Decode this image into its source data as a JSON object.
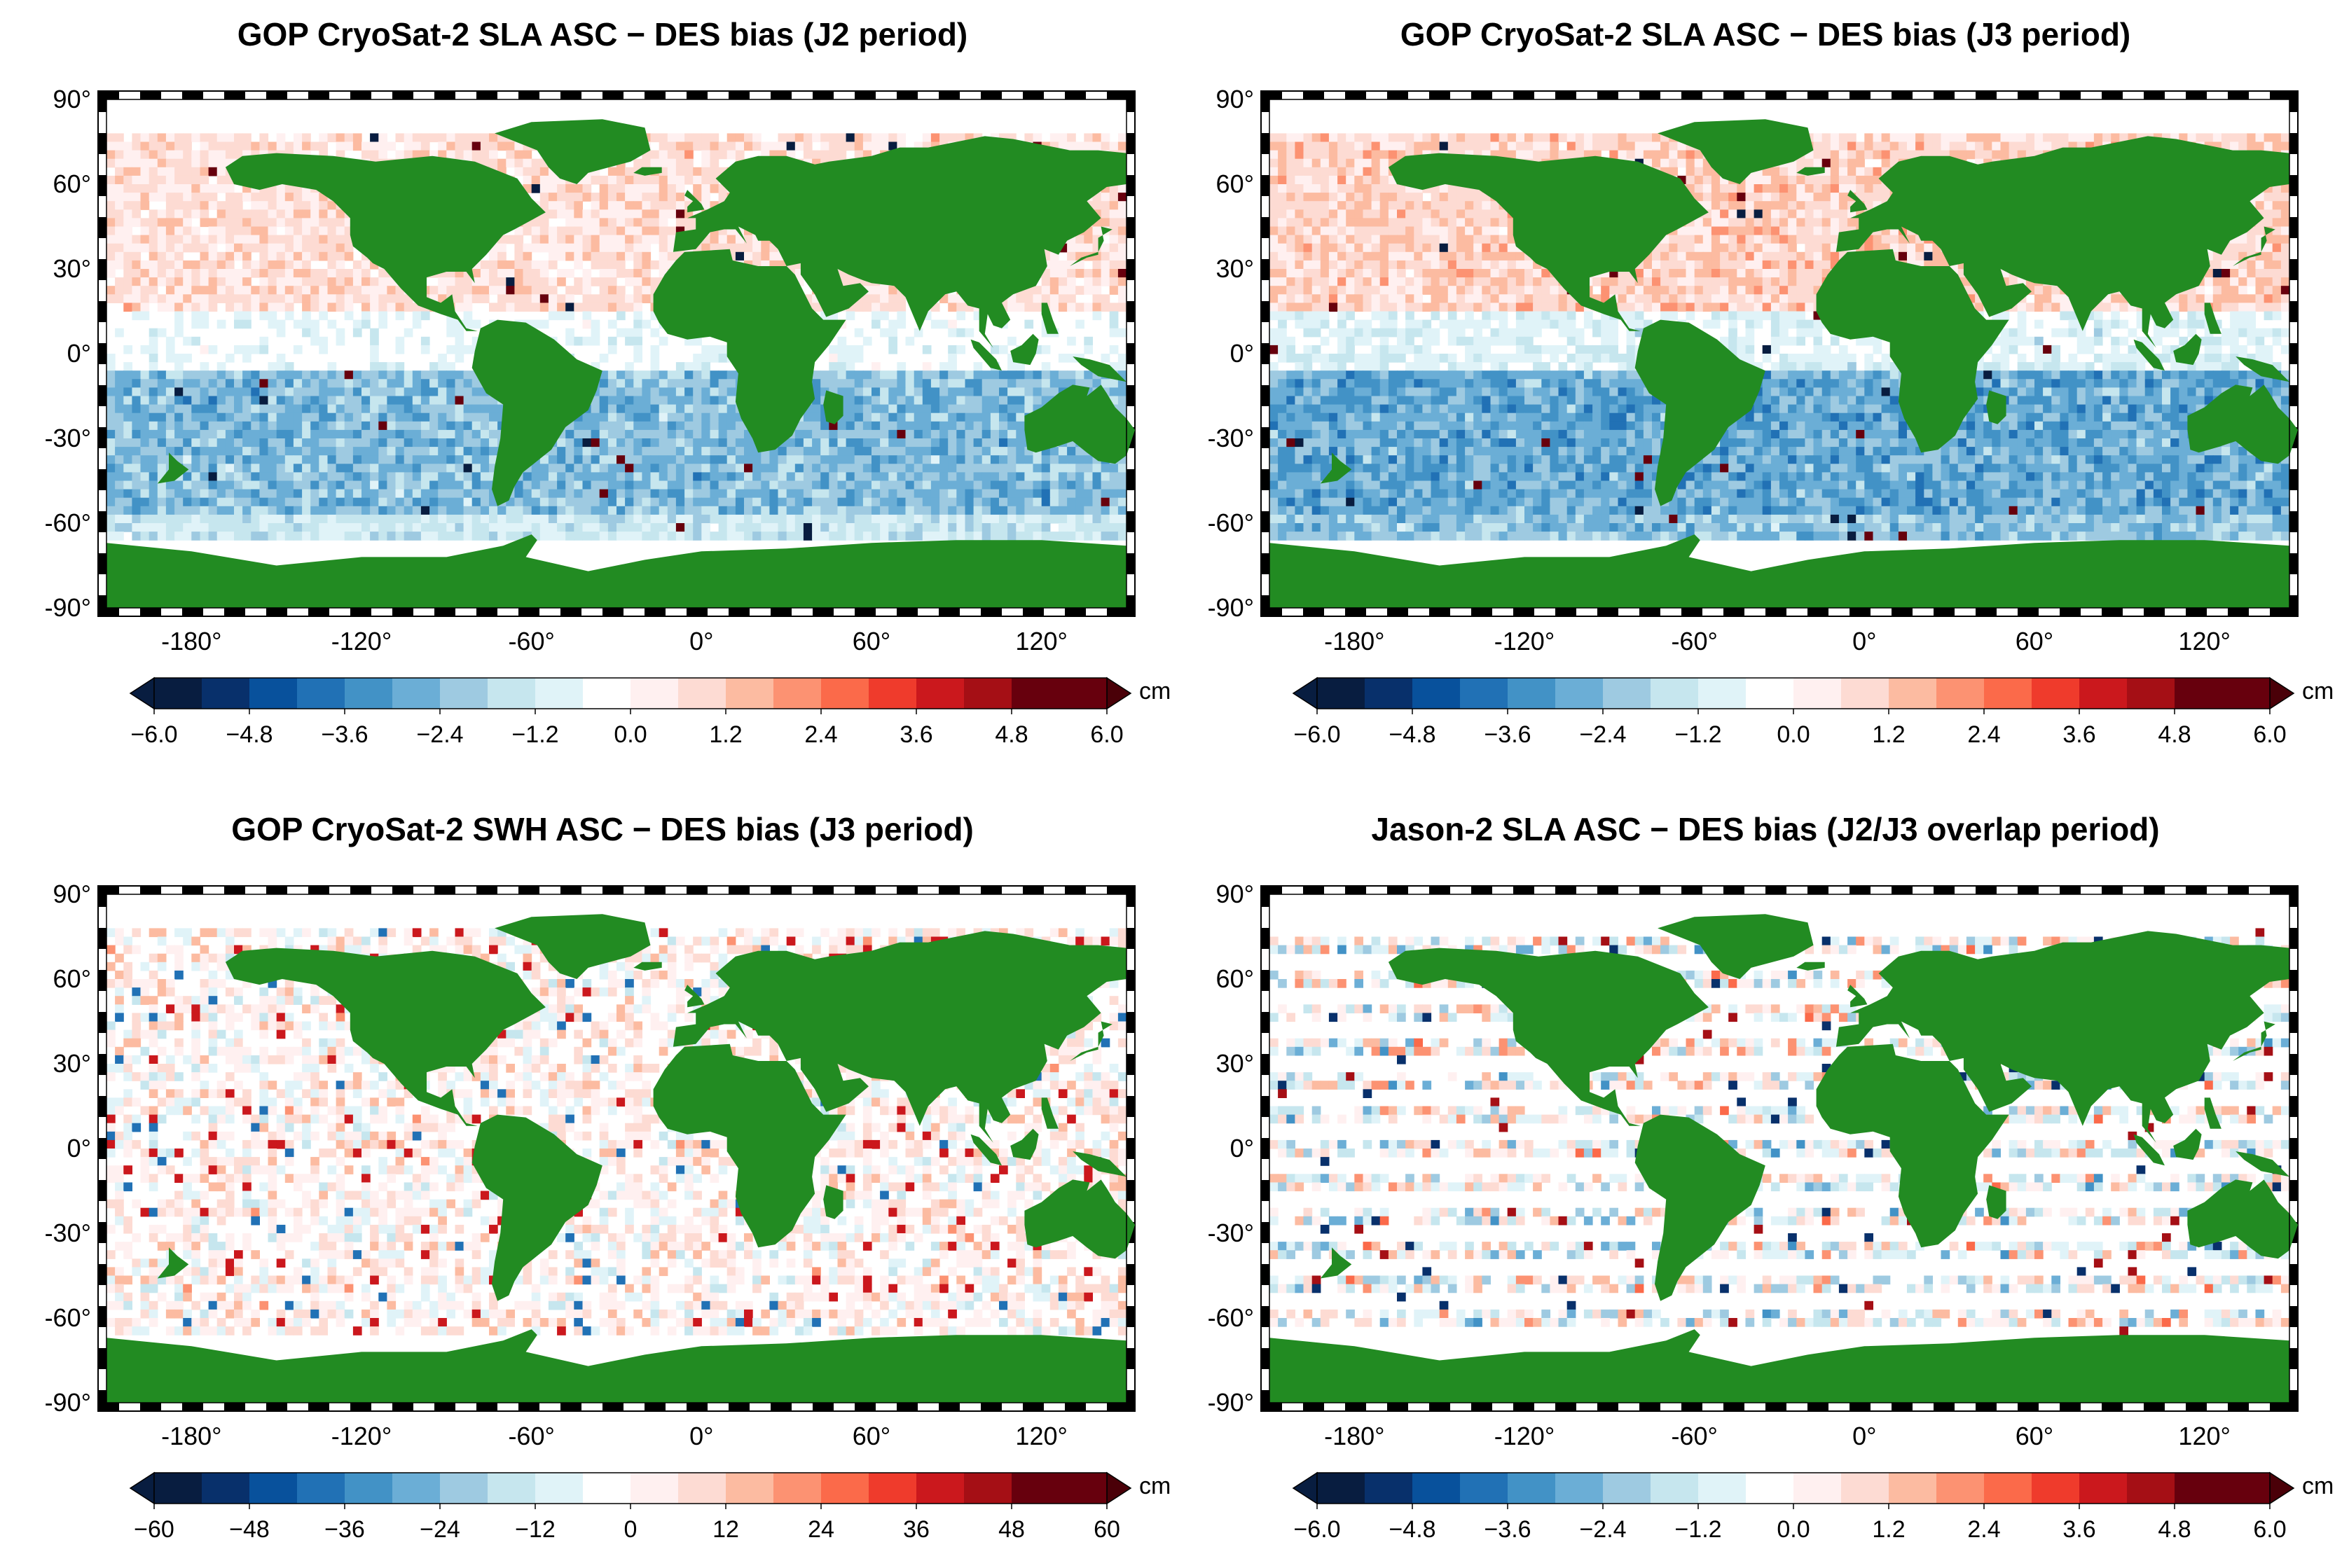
{
  "panels": [
    {
      "title": "GOP CryoSat-2 SLA ASC − DES bias (J2 period)",
      "lat_ticks": [
        "90°",
        "60°",
        "30°",
        "0°",
        "-30°",
        "-60°",
        "-90°"
      ],
      "lon_ticks": [
        "-180°",
        "-120°",
        "-60°",
        "0°",
        "60°",
        "120°"
      ],
      "colorbar_labels": [
        "−6.0",
        "−4.8",
        "−3.6",
        "−2.4",
        "−1.2",
        "0.0",
        "1.2",
        "2.4",
        "3.6",
        "4.8",
        "6.0"
      ],
      "unit": "cm"
    },
    {
      "title": "GOP CryoSat-2 SLA ASC − DES bias (J3 period)",
      "lat_ticks": [
        "90°",
        "60°",
        "30°",
        "0°",
        "-30°",
        "-60°",
        "-90°"
      ],
      "lon_ticks": [
        "-180°",
        "-120°",
        "-60°",
        "0°",
        "60°",
        "120°"
      ],
      "colorbar_labels": [
        "−6.0",
        "−4.8",
        "−3.6",
        "−2.4",
        "−1.2",
        "0.0",
        "1.2",
        "2.4",
        "3.6",
        "4.8",
        "6.0"
      ],
      "unit": "cm"
    },
    {
      "title": "GOP CryoSat-2 SWH ASC − DES bias (J3 period)",
      "lat_ticks": [
        "90°",
        "60°",
        "30°",
        "0°",
        "-30°",
        "-60°",
        "-90°"
      ],
      "lon_ticks": [
        "-180°",
        "-120°",
        "-60°",
        "0°",
        "60°",
        "120°"
      ],
      "colorbar_labels": [
        "−60",
        "−48",
        "−36",
        "−24",
        "−12",
        "0",
        "12",
        "24",
        "36",
        "48",
        "60"
      ],
      "unit": "cm"
    },
    {
      "title": "Jason-2 SLA ASC − DES bias (J2/J3 overlap period)",
      "lat_ticks": [
        "90°",
        "60°",
        "30°",
        "0°",
        "-30°",
        "-60°",
        "-90°"
      ],
      "lon_ticks": [
        "-180°",
        "-120°",
        "-60°",
        "0°",
        "60°",
        "120°"
      ],
      "colorbar_labels": [
        "−6.0",
        "−4.8",
        "−3.6",
        "−2.4",
        "−1.2",
        "0.0",
        "1.2",
        "2.4",
        "3.6",
        "4.8",
        "6.0"
      ],
      "unit": "cm"
    }
  ],
  "colors": {
    "land": "#228b22",
    "palette": [
      "#081d40",
      "#08306b",
      "#08519c",
      "#2171b5",
      "#4292c6",
      "#6baed6",
      "#9ecae1",
      "#c6e6ee",
      "#e0f3f8",
      "#ffffff",
      "#ffffff",
      "#fff0f0",
      "#fddbd3",
      "#fcbba1",
      "#fc9272",
      "#fb6a4a",
      "#ef3b2c",
      "#cb181d",
      "#a50f15",
      "#67000d",
      "#4a0008"
    ]
  }
}
